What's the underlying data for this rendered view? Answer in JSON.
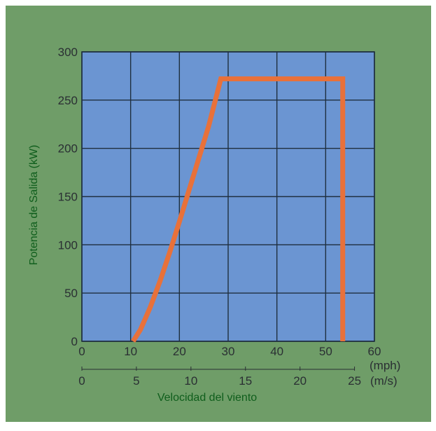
{
  "chart_data": {
    "type": "line",
    "title": "",
    "xlabel": "Velocidad del viento",
    "ylabel": "Potencia de Salida (kW)",
    "xlim": [
      0,
      60
    ],
    "ylim": [
      0,
      300
    ],
    "grid": true,
    "x_ticks": [
      "0",
      "10",
      "20",
      "30",
      "40",
      "50",
      "60"
    ],
    "x_unit": "(mph)",
    "y_ticks": [
      "0",
      "50",
      "100",
      "150",
      "200",
      "250",
      "300"
    ],
    "secondary_x": {
      "ticks": [
        "0",
        "5",
        "10",
        "15",
        "20",
        "25"
      ],
      "tick_values_in_mph": [
        0,
        11.18,
        22.37,
        33.55,
        44.74,
        55.92
      ],
      "unit": "(m/s)"
    },
    "series": [
      {
        "x": [
          10.5,
          12,
          14,
          16,
          18,
          20,
          22,
          24,
          26,
          28.5,
          30,
          35,
          40,
          45,
          50,
          53.5,
          53.5
        ],
        "y": [
          0,
          12,
          35,
          62,
          92,
          124,
          157,
          190,
          223,
          272,
          272,
          272,
          272,
          272,
          272,
          272,
          0
        ]
      }
    ],
    "colors": {
      "page_background": "#6f9d68",
      "plot_background": "#6b95d2",
      "grid": "#1f2f3f",
      "line": "#e8713a",
      "tick_text": "#2a2f33",
      "label_text": "#0f5e1c"
    }
  }
}
